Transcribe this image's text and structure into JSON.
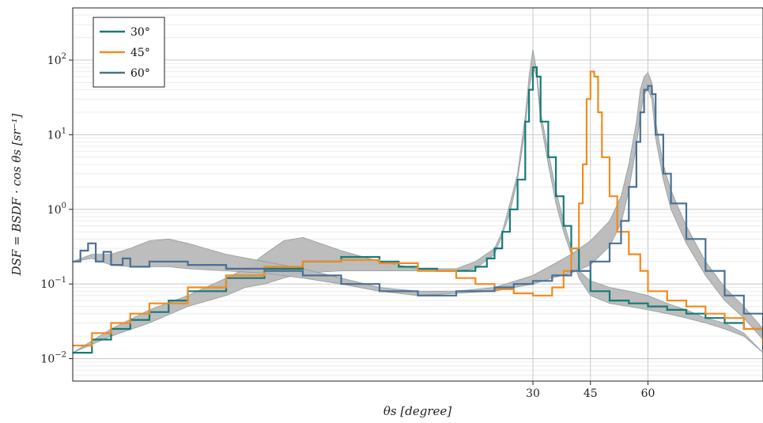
{
  "chart_data": {
    "type": "line",
    "title": "",
    "xlabel": "θs [degree]",
    "ylabel": "DSF = BSDF · cos θs [sr⁻¹]",
    "xlim": [
      -90,
      90
    ],
    "ylim": [
      0.005,
      500
    ],
    "yscale": "log",
    "grid": true,
    "legend_position": "top-left",
    "x_ticks": [
      {
        "value": 30,
        "label": "30"
      },
      {
        "value": 45,
        "label": "45"
      },
      {
        "value": 60,
        "label": "60"
      }
    ],
    "y_ticks": [
      {
        "value": 0.01,
        "base": "10",
        "exp": "−2"
      },
      {
        "value": 0.1,
        "base": "10",
        "exp": "−1"
      },
      {
        "value": 1,
        "base": "10",
        "exp": "0"
      },
      {
        "value": 10,
        "base": "10",
        "exp": "1"
      },
      {
        "value": 100,
        "base": "10",
        "exp": "2"
      }
    ],
    "series": [
      {
        "name": "30°",
        "color": "#167a76",
        "x": [
          -90,
          -85,
          -80,
          -75,
          -70,
          -65,
          -60,
          -50,
          -40,
          -30,
          -20,
          -10,
          -5,
          0,
          5,
          10,
          15,
          18,
          20,
          22,
          24,
          26,
          28,
          29,
          30,
          31,
          32,
          34,
          36,
          38,
          40,
          42,
          45,
          50,
          55,
          60,
          65,
          70,
          75,
          80,
          85,
          90
        ],
        "y": [
          0.012,
          0.018,
          0.025,
          0.033,
          0.042,
          0.06,
          0.08,
          0.12,
          0.16,
          0.2,
          0.23,
          0.2,
          0.17,
          0.16,
          0.15,
          0.15,
          0.17,
          0.22,
          0.3,
          0.5,
          1.0,
          2.5,
          15,
          40,
          80,
          60,
          15,
          5,
          1.5,
          0.6,
          0.3,
          0.15,
          0.08,
          0.06,
          0.055,
          0.05,
          0.045,
          0.04,
          0.035,
          0.03,
          0.025,
          0.013
        ]
      },
      {
        "name": "45°",
        "color": "#f28a20",
        "x": [
          -90,
          -85,
          -80,
          -75,
          -70,
          -60,
          -50,
          -40,
          -30,
          -20,
          -10,
          0,
          10,
          15,
          20,
          25,
          30,
          35,
          38,
          40,
          42,
          43,
          44,
          45,
          46,
          47,
          48,
          50,
          52,
          55,
          58,
          60,
          65,
          70,
          75,
          80,
          85,
          90
        ],
        "y": [
          0.015,
          0.022,
          0.03,
          0.04,
          0.055,
          0.09,
          0.13,
          0.17,
          0.2,
          0.21,
          0.19,
          0.15,
          0.12,
          0.1,
          0.085,
          0.075,
          0.07,
          0.09,
          0.15,
          0.3,
          1.2,
          4,
          30,
          70,
          60,
          20,
          5,
          1.5,
          0.5,
          0.25,
          0.15,
          0.08,
          0.06,
          0.05,
          0.04,
          0.035,
          0.025,
          0.015
        ]
      },
      {
        "name": "60°",
        "color": "#4a6f93",
        "x": [
          -90,
          -88,
          -86,
          -84,
          -82,
          -80,
          -77,
          -75,
          -70,
          -60,
          -50,
          -40,
          -30,
          -20,
          -10,
          0,
          10,
          20,
          25,
          30,
          35,
          40,
          45,
          50,
          53,
          55,
          57,
          58,
          59,
          60,
          61,
          62,
          64,
          66,
          70,
          75,
          80,
          85,
          90
        ],
        "y": [
          0.2,
          0.28,
          0.35,
          0.2,
          0.27,
          0.18,
          0.22,
          0.17,
          0.2,
          0.18,
          0.16,
          0.15,
          0.13,
          0.1,
          0.08,
          0.07,
          0.08,
          0.09,
          0.1,
          0.11,
          0.13,
          0.15,
          0.2,
          0.35,
          0.7,
          2,
          8,
          20,
          40,
          45,
          35,
          10,
          3,
          1.2,
          0.4,
          0.15,
          0.07,
          0.04,
          0.02
        ]
      }
    ],
    "reference_bands": [
      {
        "for": "30°",
        "x": [
          -90,
          -80,
          -70,
          -60,
          -50,
          -45,
          -40,
          -35,
          -30,
          -20,
          -10,
          0,
          10,
          15,
          20,
          22,
          24,
          26,
          28,
          29,
          30,
          31,
          32,
          34,
          36,
          38,
          40,
          42,
          45,
          50,
          55,
          60,
          65,
          70,
          75,
          80,
          85,
          90
        ],
        "upper": [
          0.012,
          0.025,
          0.045,
          0.07,
          0.12,
          0.16,
          0.25,
          0.38,
          0.42,
          0.28,
          0.2,
          0.16,
          0.16,
          0.2,
          0.3,
          0.5,
          1.2,
          3,
          18,
          60,
          140,
          70,
          20,
          6,
          1.8,
          0.7,
          0.3,
          0.15,
          0.11,
          0.09,
          0.08,
          0.07,
          0.055,
          0.045,
          0.035,
          0.03,
          0.022,
          0.012
        ],
        "lower": [
          0.012,
          0.02,
          0.03,
          0.05,
          0.07,
          0.09,
          0.1,
          0.12,
          0.14,
          0.15,
          0.15,
          0.15,
          0.15,
          0.16,
          0.25,
          0.45,
          0.9,
          2.5,
          12,
          40,
          80,
          60,
          15,
          4,
          1.2,
          0.5,
          0.25,
          0.12,
          0.07,
          0.055,
          0.05,
          0.045,
          0.04,
          0.035,
          0.03,
          0.025,
          0.02,
          0.012
        ]
      },
      {
        "for": "60°",
        "x": [
          -90,
          -85,
          -80,
          -75,
          -70,
          -65,
          -60,
          -50,
          -40,
          -30,
          -20,
          -10,
          0,
          10,
          20,
          30,
          35,
          40,
          45,
          50,
          53,
          55,
          57,
          58,
          59,
          60,
          61,
          62,
          64,
          66,
          70,
          75,
          80,
          85,
          90
        ],
        "upper": [
          0.2,
          0.25,
          0.25,
          0.3,
          0.38,
          0.4,
          0.35,
          0.25,
          0.2,
          0.16,
          0.12,
          0.09,
          0.08,
          0.08,
          0.09,
          0.13,
          0.18,
          0.25,
          0.38,
          0.7,
          1.5,
          4,
          15,
          40,
          60,
          68,
          50,
          15,
          4,
          1.8,
          0.6,
          0.2,
          0.09,
          0.05,
          0.025
        ],
        "lower": [
          0.2,
          0.22,
          0.18,
          0.17,
          0.17,
          0.17,
          0.16,
          0.15,
          0.14,
          0.12,
          0.1,
          0.08,
          0.07,
          0.075,
          0.08,
          0.1,
          0.12,
          0.14,
          0.18,
          0.32,
          0.65,
          1.8,
          7,
          18,
          35,
          40,
          30,
          9,
          2.5,
          1,
          0.35,
          0.13,
          0.06,
          0.035,
          0.018
        ]
      }
    ]
  }
}
